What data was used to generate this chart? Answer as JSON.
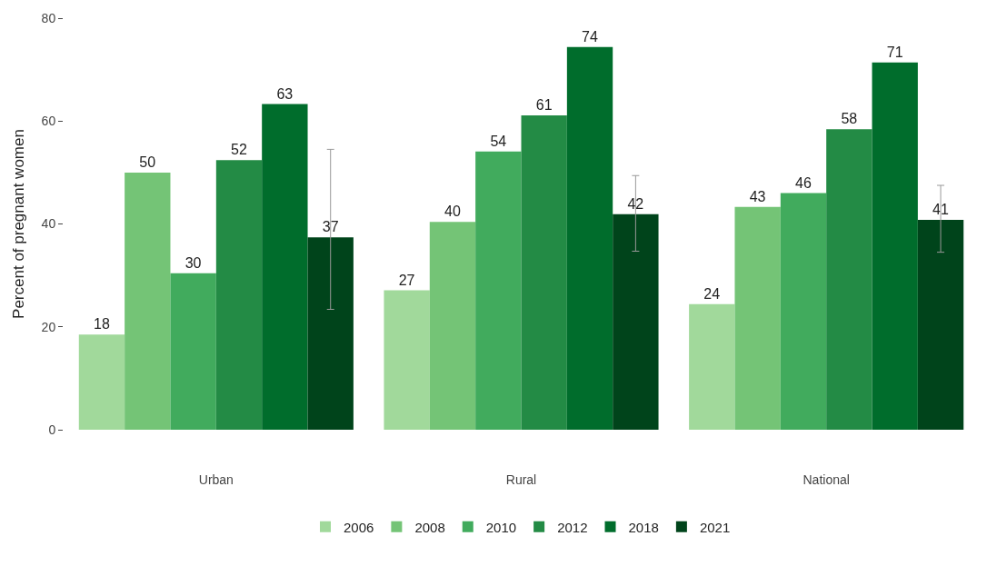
{
  "chart_data": {
    "type": "bar",
    "ylabel": "Percent of pregnant women",
    "categories": [
      "Urban",
      "Rural",
      "National"
    ],
    "series": [
      {
        "name": "2006",
        "color": "#a1d99b",
        "values": [
          18.5,
          27.1,
          24.4
        ],
        "value_labels": [
          "18",
          "27",
          "24"
        ]
      },
      {
        "name": "2008",
        "color": "#74c476",
        "values": [
          50.0,
          40.4,
          43.3
        ],
        "value_labels": [
          "50",
          "40",
          "43"
        ]
      },
      {
        "name": "2010",
        "color": "#41ab5d",
        "values": [
          30.4,
          54.1,
          46.0
        ],
        "value_labels": [
          "30",
          "54",
          "46"
        ]
      },
      {
        "name": "2012",
        "color": "#238b45",
        "values": [
          52.4,
          61.1,
          58.4
        ],
        "value_labels": [
          "52",
          "61",
          "58"
        ]
      },
      {
        "name": "2018",
        "color": "#006d2c",
        "values": [
          63.3,
          74.4,
          71.4
        ],
        "value_labels": [
          "63",
          "74",
          "71"
        ]
      },
      {
        "name": "2021",
        "color": "#00441b",
        "values": [
          37.4,
          41.9,
          40.8
        ],
        "value_labels": [
          "37",
          "42",
          "41"
        ],
        "errors": [
          [
            23.4,
            54.5
          ],
          [
            34.7,
            49.4
          ],
          [
            34.5,
            47.5
          ]
        ]
      }
    ],
    "ylim": [
      0,
      80
    ],
    "yticks": [
      0,
      20,
      40,
      60,
      80
    ],
    "grid": false,
    "legend": "bottom"
  }
}
